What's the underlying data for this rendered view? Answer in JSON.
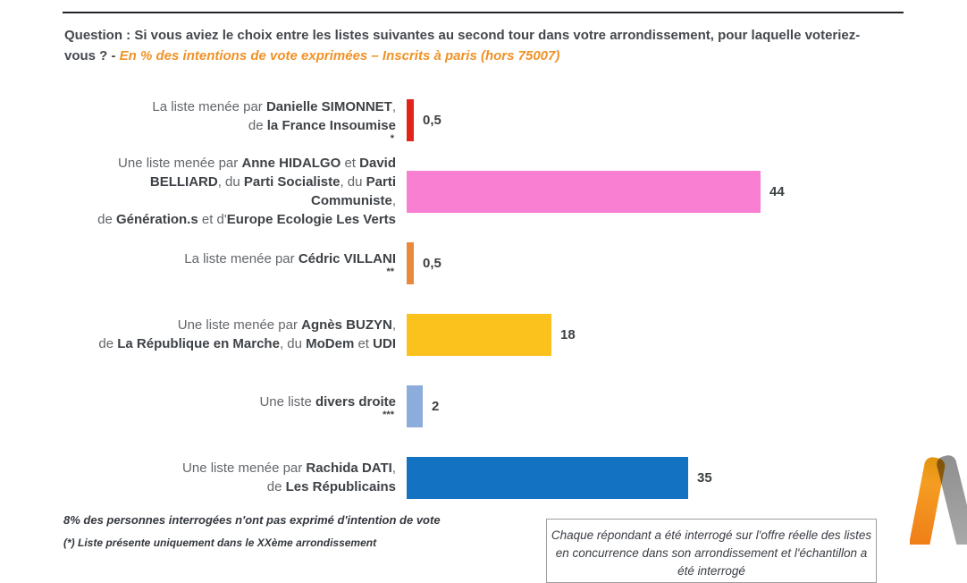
{
  "header": {
    "question": "Question : Si vous aviez le choix entre les listes suivantes au second tour dans votre arrondissement, pour laquelle voteriez-vous ? - ",
    "subtitle": "En % des intentions de vote exprimées – Inscrits à paris (hors 75007)"
  },
  "colors": {
    "accent_orange": "#ef9227",
    "title_text": "#44484d",
    "bar_red": "#e2231a",
    "bar_pink": "#f97fd3",
    "bar_orange": "#e88a3e",
    "bar_yellow": "#fbc11d",
    "bar_lightblue": "#8cacdc",
    "bar_blue": "#1372c1",
    "logo_orange": "#ef7d17",
    "logo_gray": "#9d9d9d"
  },
  "chart_data": {
    "type": "bar",
    "orientation": "horizontal",
    "title": "Question : Si vous aviez le choix entre les listes suivantes au second tour dans votre arrondissement, pour laquelle voteriez-vous ?",
    "subtitle": "En % des intentions de vote exprimées – Inscrits à paris (hors 75007)",
    "unit": "%",
    "xlim": [
      0,
      47
    ],
    "grid": false,
    "legend": false,
    "categories": [
      "La liste menée par Danielle SIMONNET, de la France Insoumise *",
      "Une liste menée par Anne HIDALGO et David BELLIARD, du Parti Socialiste, du Parti Communiste, de Génération.s et d'Europe Ecologie Les Verts",
      "La liste menée par Cédric VILLANI **",
      "Une liste menée par Agnès BUZYN, de La République en Marche, du MoDem et UDI",
      "Une liste divers droite ***",
      "Une liste menée par Rachida DATI, de Les Républicains"
    ],
    "values": [
      0.5,
      44,
      0.5,
      18,
      2,
      35
    ],
    "value_labels": [
      "0,5",
      "44",
      "0,5",
      "18",
      "2",
      "35"
    ],
    "bar_colors": [
      "#e2231a",
      "#f97fd3",
      "#e88a3e",
      "#fbc11d",
      "#8cacdc",
      "#1372c1"
    ]
  },
  "bars": [
    {
      "id": "simonnet",
      "value": 0.5,
      "value_label": "0,5",
      "color": "#e2231a",
      "marker": "*",
      "segments": [
        {
          "t": "La liste menée par ",
          "b": false
        },
        {
          "t": "Danielle SIMONNET",
          "b": true
        },
        {
          "t": ",",
          "b": false
        },
        {
          "br": true
        },
        {
          "t": "de ",
          "b": false
        },
        {
          "t": "la France Insoumise",
          "b": true
        }
      ]
    },
    {
      "id": "hidalgo",
      "value": 44,
      "value_label": "44",
      "color": "#f97fd3",
      "marker": "",
      "segments": [
        {
          "t": "Une liste menée par ",
          "b": false
        },
        {
          "t": "Anne HIDALGO",
          "b": true
        },
        {
          "t": " et ",
          "b": false
        },
        {
          "t": "David",
          "b": true
        },
        {
          "br": true
        },
        {
          "t": "BELLIARD",
          "b": true
        },
        {
          "t": ", du ",
          "b": false
        },
        {
          "t": "Parti Socialiste",
          "b": true
        },
        {
          "t": ", du ",
          "b": false
        },
        {
          "t": "Parti Communiste",
          "b": true
        },
        {
          "t": ",",
          "b": false
        },
        {
          "br": true
        },
        {
          "t": "de ",
          "b": false
        },
        {
          "t": "Génération.s",
          "b": true
        },
        {
          "t": " et d'",
          "b": false
        },
        {
          "t": "Europe Ecologie Les Verts",
          "b": true
        }
      ]
    },
    {
      "id": "villani",
      "value": 0.5,
      "value_label": "0,5",
      "color": "#e88a3e",
      "marker": "**",
      "segments": [
        {
          "t": "La liste menée par ",
          "b": false
        },
        {
          "t": "Cédric VILLANI",
          "b": true
        }
      ]
    },
    {
      "id": "buzyn",
      "value": 18,
      "value_label": "18",
      "color": "#fbc11d",
      "marker": "",
      "segments": [
        {
          "t": "Une liste menée par ",
          "b": false
        },
        {
          "t": "Agnès BUZYN",
          "b": true
        },
        {
          "t": ",",
          "b": false
        },
        {
          "br": true
        },
        {
          "t": "de ",
          "b": false
        },
        {
          "t": "La République en Marche",
          "b": true
        },
        {
          "t": ", du ",
          "b": false
        },
        {
          "t": "MoDem",
          "b": true
        },
        {
          "t": " et ",
          "b": false
        },
        {
          "t": "UDI",
          "b": true
        }
      ]
    },
    {
      "id": "divers-droite",
      "value": 2,
      "value_label": "2",
      "color": "#8cacdc",
      "marker": "***",
      "segments": [
        {
          "t": "Une liste ",
          "b": false
        },
        {
          "t": "divers droite",
          "b": true
        }
      ]
    },
    {
      "id": "dati",
      "value": 35,
      "value_label": "35",
      "color": "#1372c1",
      "marker": "",
      "segments": [
        {
          "t": "Une liste menée par ",
          "b": false
        },
        {
          "t": "Rachida DATI",
          "b": true
        },
        {
          "t": ",",
          "b": false
        },
        {
          "br": true
        },
        {
          "t": "de ",
          "b": false
        },
        {
          "t": "Les Républicains",
          "b": true
        }
      ]
    }
  ],
  "footnotes": {
    "no_vote": "8% des personnes interrogées n'ont pas exprimé d'intention de vote",
    "note1": "(*) Liste présente uniquement dans le XXème arrondissement"
  },
  "note_box": {
    "line1": "Chaque répondant a été interrogé sur l'offre réelle des listes",
    "line2": "en concurrence dans son arrondissement et l'échantillon a été interrogé"
  }
}
